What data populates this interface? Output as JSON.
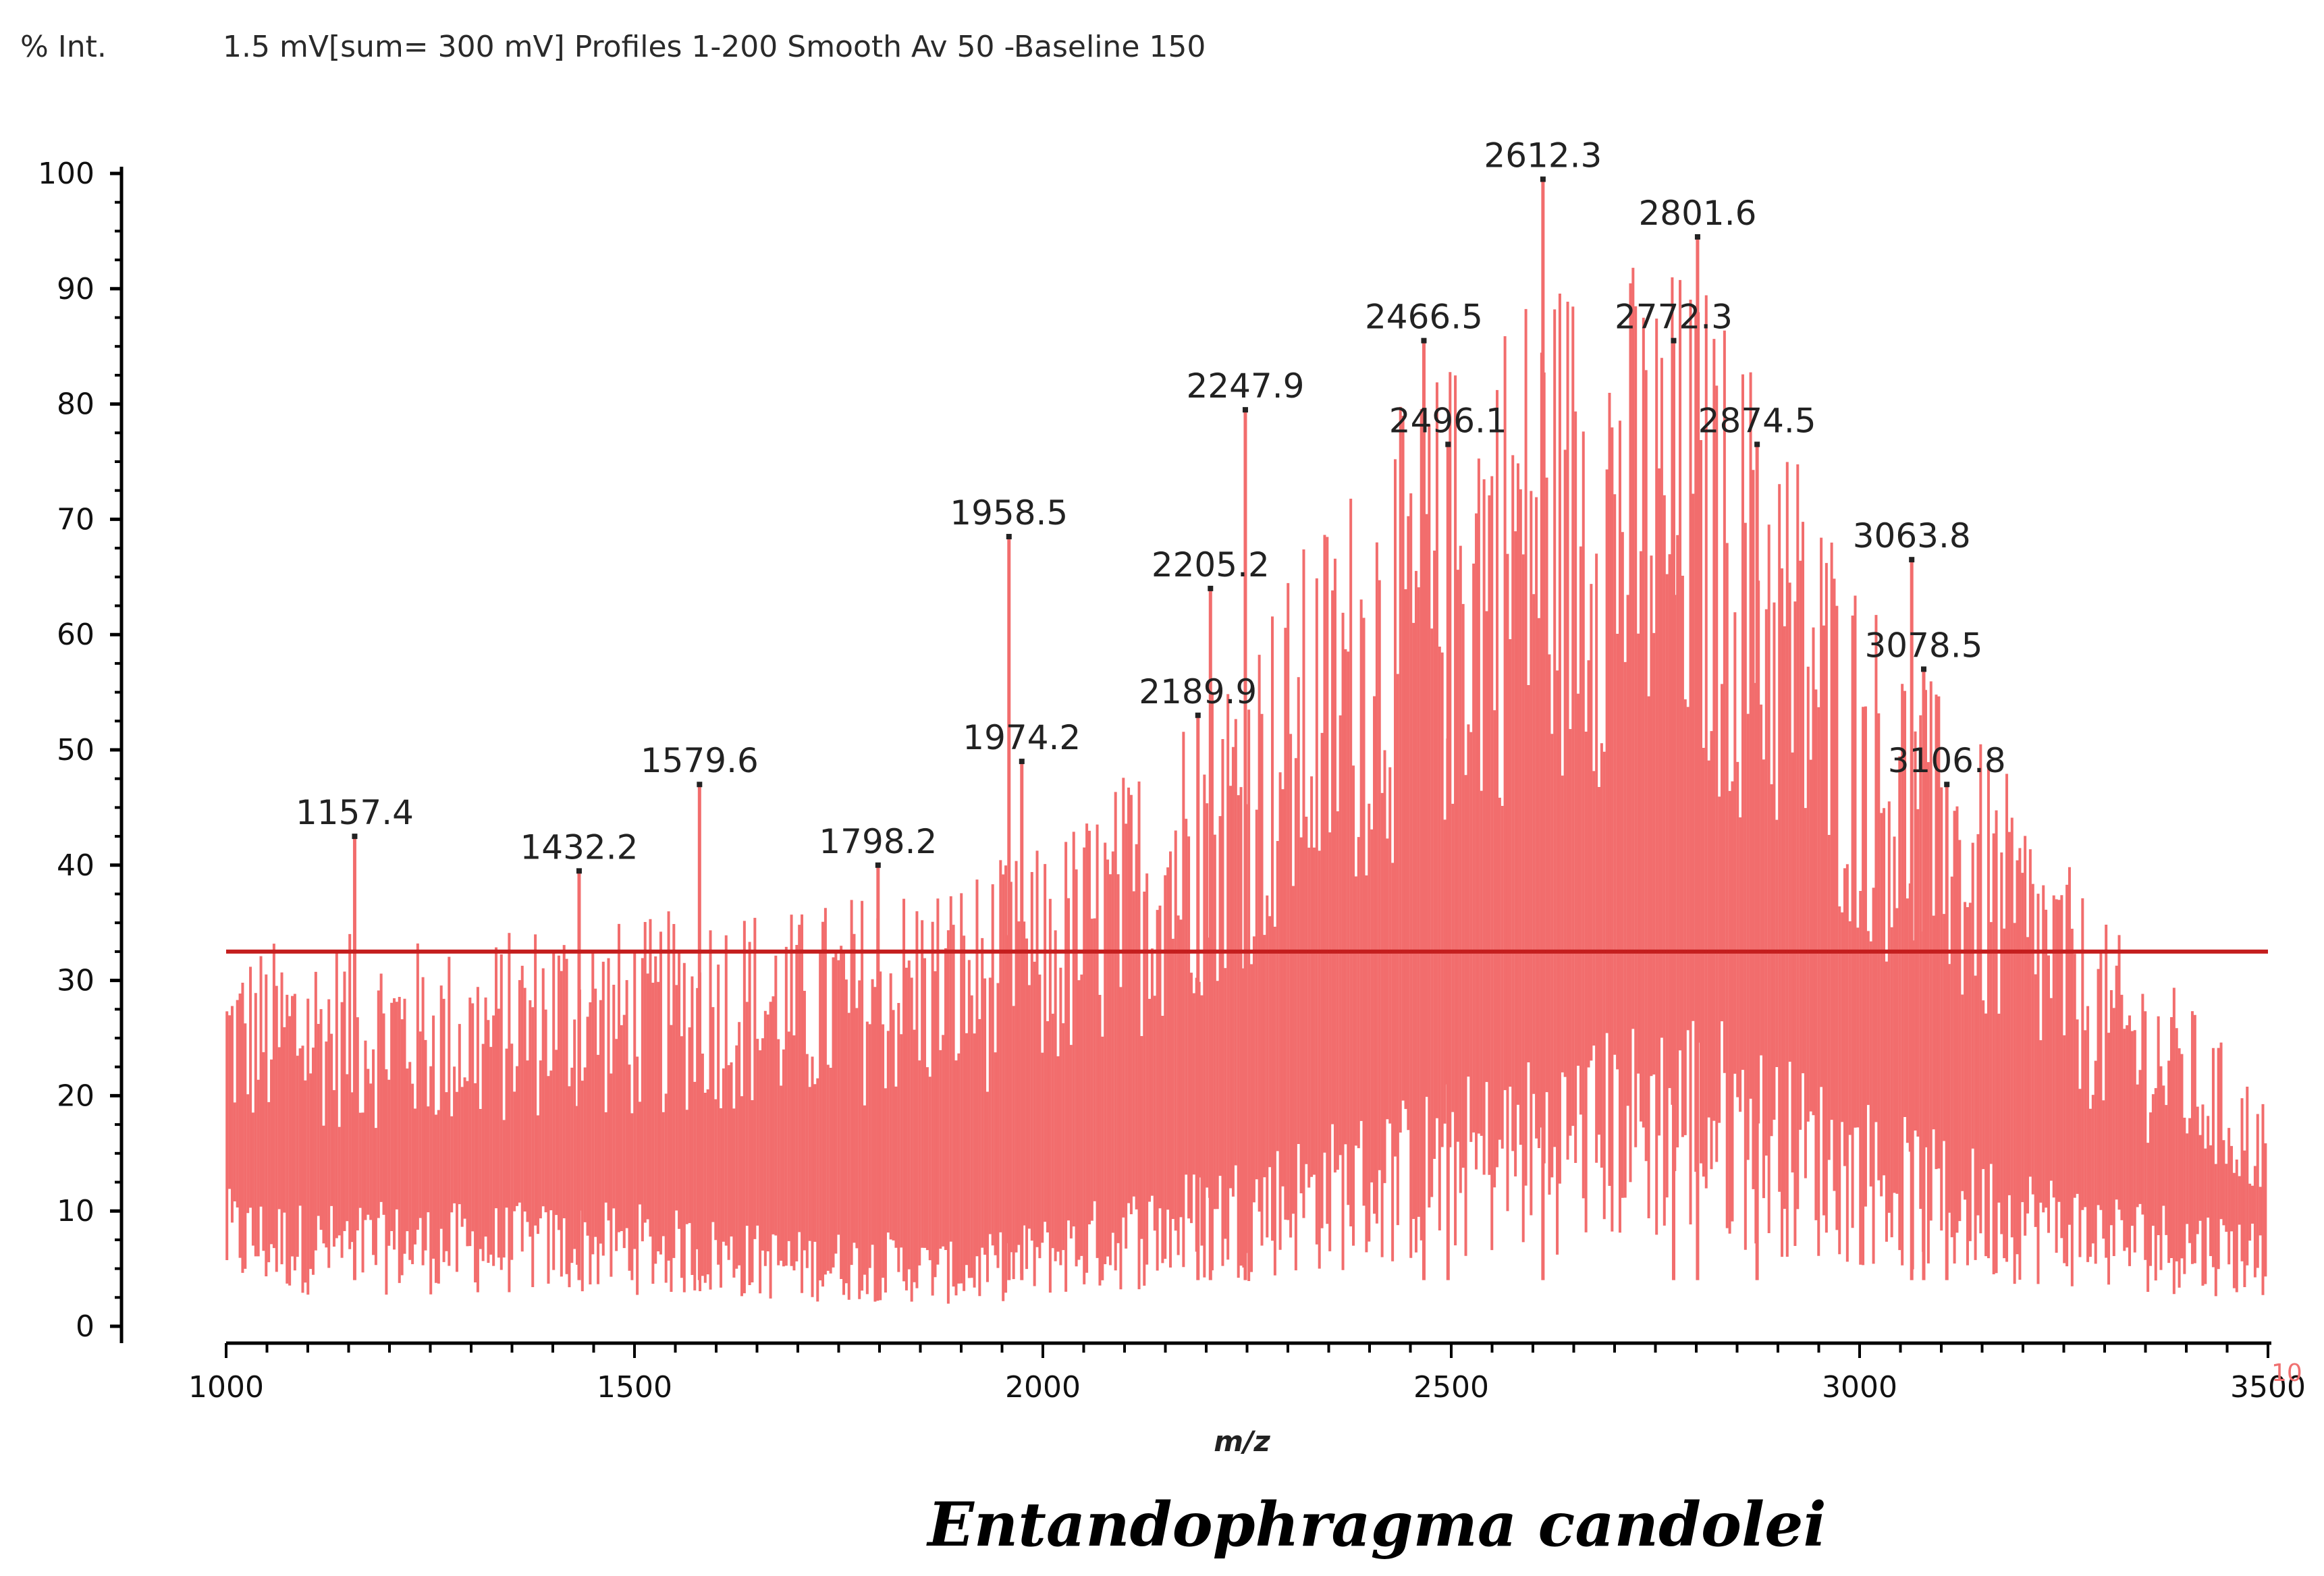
{
  "chart_data": {
    "type": "bar",
    "title": "1.5 mV[sum= 300 mV] Profiles 1-200 Smooth Av 50 -Baseline 150",
    "ylabel": "% Int.",
    "xlabel": "m/z",
    "caption": "Entandophragma candolei",
    "axis_suffix": "10",
    "xlim": [
      1000,
      3500
    ],
    "ylim": [
      0,
      100
    ],
    "xticks": [
      1000,
      1500,
      2000,
      2500,
      3000,
      3500
    ],
    "yticks": [
      0,
      10,
      20,
      30,
      40,
      50,
      60,
      70,
      80,
      90,
      100
    ],
    "threshold": {
      "value": 32.5,
      "color": "#c41e1e"
    },
    "bar_color": "#f26d6d",
    "axis_color": "#000000",
    "peaks": [
      {
        "x": 1157.4,
        "y": 42.5,
        "label": "1157.4"
      },
      {
        "x": 1432.2,
        "y": 39.5,
        "label": "1432.2"
      },
      {
        "x": 1579.6,
        "y": 47.0,
        "label": "1579.6"
      },
      {
        "x": 1798.2,
        "y": 40.0,
        "label": "1798.2"
      },
      {
        "x": 1958.5,
        "y": 68.5,
        "label": "1958.5"
      },
      {
        "x": 1974.2,
        "y": 49.0,
        "label": "1974.2"
      },
      {
        "x": 2189.9,
        "y": 53.0,
        "label": "2189.9"
      },
      {
        "x": 2205.2,
        "y": 64.0,
        "label": "2205.2"
      },
      {
        "x": 2247.9,
        "y": 79.5,
        "label": "2247.9"
      },
      {
        "x": 2466.5,
        "y": 85.5,
        "label": "2466.5"
      },
      {
        "x": 2496.1,
        "y": 76.5,
        "label": "2496.1"
      },
      {
        "x": 2612.3,
        "y": 99.5,
        "label": "2612.3"
      },
      {
        "x": 2772.3,
        "y": 85.5,
        "label": "2772.3"
      },
      {
        "x": 2801.6,
        "y": 94.5,
        "label": "2801.6"
      },
      {
        "x": 2874.5,
        "y": 76.5,
        "label": "2874.5"
      },
      {
        "x": 3063.8,
        "y": 66.5,
        "label": "3063.8"
      },
      {
        "x": 3078.5,
        "y": 57.0,
        "label": "3078.5"
      },
      {
        "x": 3106.8,
        "y": 47.0,
        "label": "3106.8"
      }
    ],
    "envelope": {
      "x": [
        1000,
        1100,
        1200,
        1300,
        1400,
        1500,
        1600,
        1700,
        1800,
        1900,
        2000,
        2100,
        2200,
        2300,
        2400,
        2500,
        2600,
        2700,
        2800,
        2900,
        3000,
        3100,
        3200,
        3300,
        3400,
        3500
      ],
      "top": [
        30,
        31,
        31,
        30,
        33,
        32,
        34,
        33,
        35,
        36,
        38,
        44,
        52,
        60,
        70,
        77,
        84,
        85,
        84,
        74,
        60,
        50,
        42,
        32,
        26,
        18
      ],
      "low": [
        10,
        9,
        9,
        9,
        9,
        9,
        8,
        7,
        7,
        6,
        8,
        10,
        12,
        14,
        16,
        18,
        20,
        22,
        24,
        20,
        17,
        14,
        12,
        10,
        9,
        8
      ]
    }
  }
}
